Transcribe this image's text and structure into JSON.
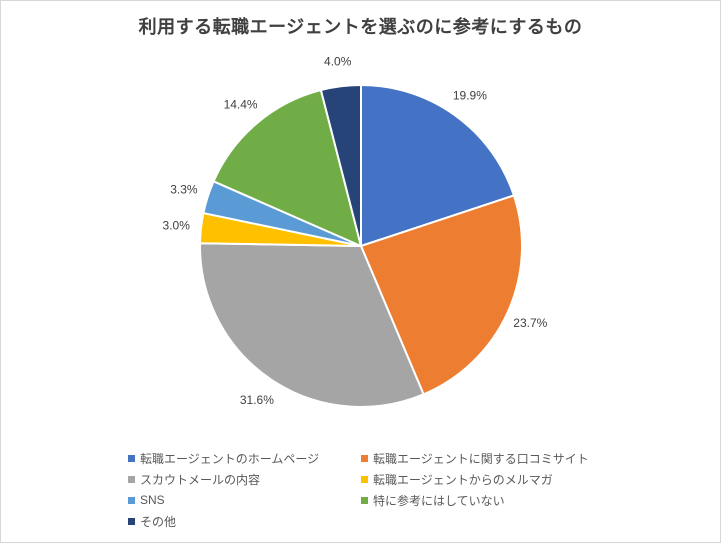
{
  "window": {
    "background_color": "#FFFFFF",
    "border_color": "#D7D7D7"
  },
  "chart_data": {
    "type": "pie",
    "title": "利用する転職エージェントを選ぶのに参考にするもの",
    "categories": [
      "転職エージェントのホームページ",
      "転職エージェントに関する口コミサイト",
      "スカウトメールの内容",
      "転職エージェントからのメルマガ",
      "SNS",
      "特に参考にはしていない",
      "その他"
    ],
    "values": [
      19.9,
      23.7,
      31.6,
      3.0,
      3.3,
      14.4,
      4.0
    ],
    "data_labels": [
      "19.9%",
      "23.7%",
      "31.6%",
      "3.0%",
      "3.3%",
      "14.4%",
      "4.0%"
    ],
    "colors": [
      "#4472C4",
      "#ED7D31",
      "#A5A5A5",
      "#FFC000",
      "#5B9BD5",
      "#70AD47",
      "#264478"
    ],
    "start_angle_deg": 0,
    "direction": "clockwise",
    "slice_border_color": "#FFFFFF",
    "data_label_position": "outside-end",
    "label_color": "#404040",
    "legend_position": "bottom",
    "legend_text_color": "#595959",
    "title_color": "#404040"
  }
}
